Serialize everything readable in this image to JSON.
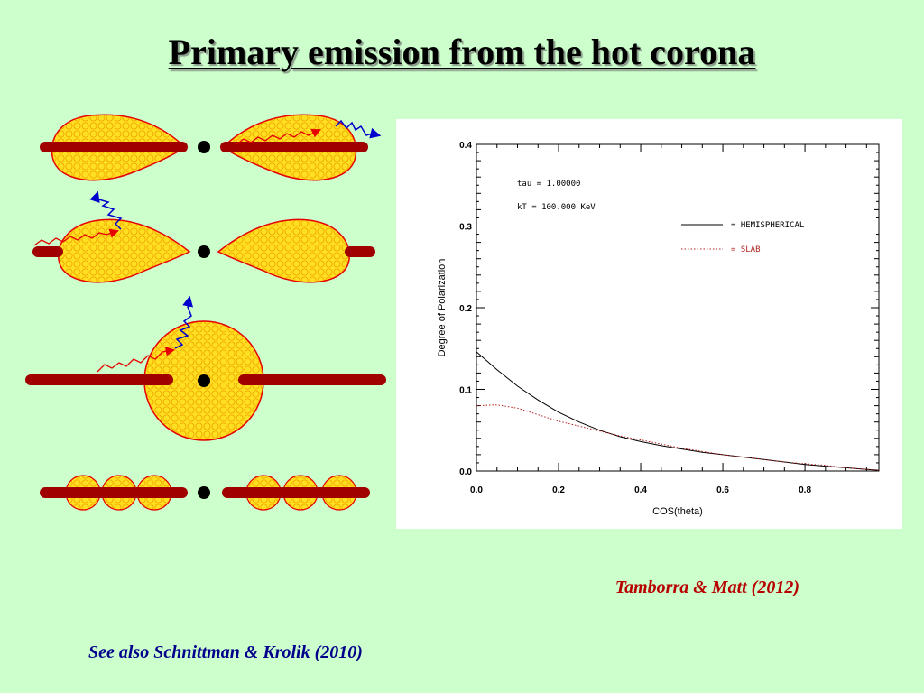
{
  "slide": {
    "title": "Primary emission from the hot corona",
    "citation_main": "Tamborra & Matt (2012)",
    "citation_see_also": "See also Schnittman & Krolik (2010)"
  },
  "colors": {
    "background": "#ccffcc",
    "corona_fill": "#ffe020",
    "corona_outline": "#e60000",
    "disk": "#a00000",
    "primary_photon": "#e60000",
    "scattered_photon": "#0000cc",
    "black_hole": "#000000"
  },
  "chart_data": {
    "type": "line",
    "title": "",
    "xlabel": "COS(theta)",
    "ylabel": "Degree of Polarization",
    "xlim": [
      0.0,
      0.98
    ],
    "ylim": [
      0.0,
      0.4
    ],
    "x_ticks": [
      "0.0",
      "0.2",
      "0.4",
      "0.6",
      "0.8"
    ],
    "y_ticks": [
      "0.0",
      "0.1",
      "0.2",
      "0.3",
      "0.4"
    ],
    "grid": false,
    "annotations": [
      "tau = 1.00000",
      "kT = 100.000 KeV"
    ],
    "legend_position": "top-right",
    "series": [
      {
        "name": "= HEMISPHERICAL",
        "style": "solid",
        "color": "#000000",
        "x": [
          0.0,
          0.05,
          0.1,
          0.15,
          0.2,
          0.25,
          0.3,
          0.35,
          0.4,
          0.45,
          0.5,
          0.55,
          0.6,
          0.65,
          0.7,
          0.75,
          0.8,
          0.85,
          0.9,
          0.95,
          0.98
        ],
        "y": [
          0.146,
          0.124,
          0.104,
          0.087,
          0.072,
          0.06,
          0.05,
          0.042,
          0.036,
          0.031,
          0.027,
          0.023,
          0.02,
          0.017,
          0.014,
          0.011,
          0.008,
          0.006,
          0.004,
          0.002,
          0.001
        ]
      },
      {
        "name": "= SLAB",
        "style": "dotted",
        "color": "#b22222",
        "x": [
          0.0,
          0.05,
          0.1,
          0.15,
          0.2,
          0.25,
          0.3,
          0.35,
          0.4,
          0.45,
          0.5,
          0.55,
          0.6,
          0.65,
          0.7,
          0.75,
          0.8,
          0.85,
          0.9,
          0.95,
          0.98
        ],
        "y": [
          0.08,
          0.081,
          0.077,
          0.069,
          0.061,
          0.055,
          0.049,
          0.043,
          0.038,
          0.033,
          0.028,
          0.024,
          0.02,
          0.017,
          0.014,
          0.011,
          0.009,
          0.007,
          0.004,
          0.002,
          0.001
        ]
      }
    ]
  }
}
